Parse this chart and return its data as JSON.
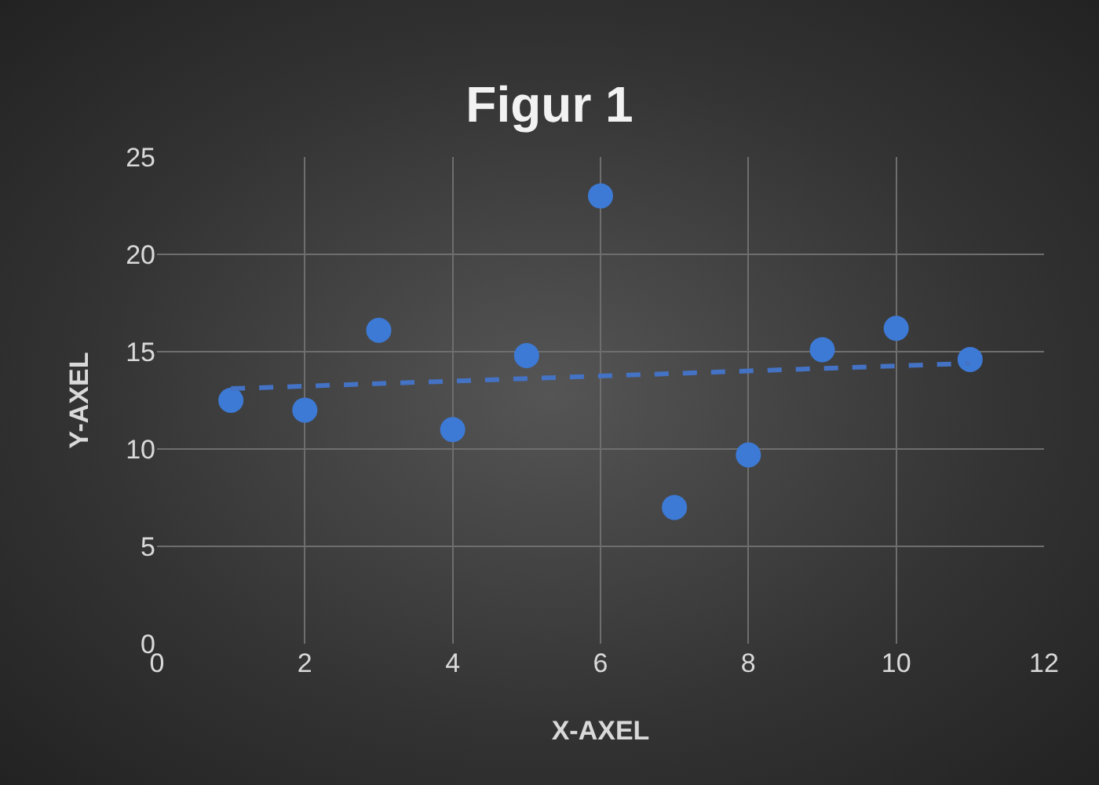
{
  "chart_data": {
    "type": "scatter",
    "title": "Figur 1",
    "xlabel": "X-AXEL",
    "ylabel": "Y-AXEL",
    "x": [
      1,
      2,
      3,
      4,
      5,
      6,
      7,
      8,
      9,
      10,
      11
    ],
    "series": [
      {
        "marker": "circle",
        "color": "#3d7ad6",
        "values": [
          12.5,
          12,
          16.1,
          11,
          14.8,
          23,
          7,
          9.7,
          15.1,
          16.2,
          14.6
        ]
      },
      {
        "type": "line",
        "color": "#4472c4",
        "line_style": "dashed",
        "x": [
          1,
          11
        ],
        "values": [
          13.1,
          14.4
        ]
      }
    ],
    "xlim": [
      0,
      12
    ],
    "xticks": [
      0,
      2,
      4,
      6,
      8,
      10,
      12
    ],
    "ylim": [
      0,
      25
    ],
    "yticks": [
      0,
      5,
      10,
      15,
      20,
      25
    ],
    "grid": true
  }
}
